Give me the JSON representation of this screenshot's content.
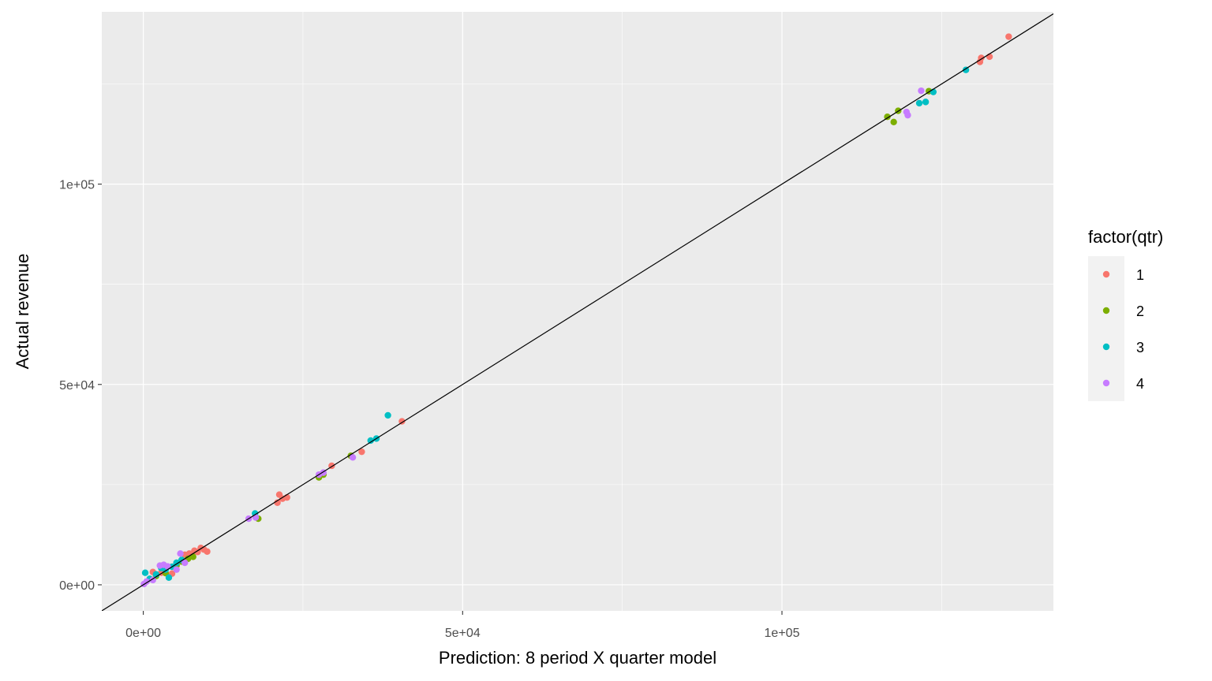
{
  "chart_data": {
    "type": "scatter",
    "title": "",
    "xlabel": "Prediction: 8 period X quarter model",
    "ylabel": "Actual revenue",
    "xlim": [
      -6500,
      142500
    ],
    "ylim": [
      -6500,
      143000
    ],
    "x_ticks": [
      {
        "value": 0,
        "label": "0e+00"
      },
      {
        "value": 50000,
        "label": "5e+04"
      },
      {
        "value": 100000,
        "label": "1e+05"
      }
    ],
    "y_ticks": [
      {
        "value": 0,
        "label": "0e+00"
      },
      {
        "value": 50000,
        "label": "5e+04"
      },
      {
        "value": 100000,
        "label": "1e+05"
      }
    ],
    "grid": true,
    "reference_line": {
      "slope": 1,
      "intercept": 0,
      "color": "#000000"
    },
    "legend": {
      "title": "factor(qtr)",
      "position": "right",
      "entries": [
        {
          "label": "1",
          "color": "#F8766D"
        },
        {
          "label": "2",
          "color": "#7CAE00"
        },
        {
          "label": "3",
          "color": "#00BFC4"
        },
        {
          "label": "4",
          "color": "#C77CFF"
        }
      ]
    },
    "series": [
      {
        "name": "1",
        "color": "#F8766D",
        "points": [
          [
            1500,
            3200
          ],
          [
            2800,
            3000
          ],
          [
            4500,
            2800
          ],
          [
            6500,
            7500
          ],
          [
            7200,
            7800
          ],
          [
            8000,
            8500
          ],
          [
            8500,
            8200
          ],
          [
            9000,
            9200
          ],
          [
            9500,
            8800
          ],
          [
            10000,
            8300
          ],
          [
            21000,
            20500
          ],
          [
            21300,
            22500
          ],
          [
            21800,
            21500
          ],
          [
            22500,
            21800
          ],
          [
            29500,
            29700
          ],
          [
            34200,
            33200
          ],
          [
            40500,
            40800
          ],
          [
            131000,
            130500
          ],
          [
            131200,
            131500
          ],
          [
            132500,
            131800
          ],
          [
            135500,
            136800
          ]
        ]
      },
      {
        "name": "2",
        "color": "#7CAE00",
        "points": [
          [
            2000,
            2200
          ],
          [
            3500,
            2900
          ],
          [
            5200,
            4800
          ],
          [
            6000,
            5800
          ],
          [
            7000,
            6500
          ],
          [
            7800,
            7000
          ],
          [
            18000,
            16500
          ],
          [
            27500,
            26800
          ],
          [
            28200,
            27500
          ],
          [
            32500,
            32200
          ],
          [
            116500,
            116800
          ],
          [
            117500,
            115500
          ],
          [
            118200,
            118300
          ],
          [
            123000,
            123200
          ]
        ]
      },
      {
        "name": "3",
        "color": "#00BFC4",
        "points": [
          [
            300,
            3000
          ],
          [
            1000,
            1500
          ],
          [
            2000,
            2600
          ],
          [
            2800,
            4200
          ],
          [
            3500,
            3800
          ],
          [
            4000,
            1800
          ],
          [
            4500,
            4500
          ],
          [
            5200,
            5500
          ],
          [
            6000,
            6200
          ],
          [
            17500,
            17800
          ],
          [
            35600,
            36000
          ],
          [
            36500,
            36500
          ],
          [
            38300,
            42300
          ],
          [
            121500,
            120200
          ],
          [
            122500,
            120500
          ],
          [
            123700,
            123000
          ],
          [
            128800,
            128500
          ]
        ]
      },
      {
        "name": "4",
        "color": "#C77CFF",
        "points": [
          [
            100,
            200
          ],
          [
            500,
            800
          ],
          [
            1500,
            1200
          ],
          [
            2600,
            4800
          ],
          [
            3200,
            5000
          ],
          [
            3800,
            4600
          ],
          [
            5200,
            3800
          ],
          [
            5800,
            7800
          ],
          [
            6500,
            5500
          ],
          [
            16500,
            16500
          ],
          [
            17600,
            16800
          ],
          [
            27500,
            27500
          ],
          [
            28200,
            28000
          ],
          [
            32800,
            31800
          ],
          [
            119500,
            118000
          ],
          [
            119700,
            117200
          ],
          [
            121800,
            123300
          ]
        ]
      }
    ]
  }
}
